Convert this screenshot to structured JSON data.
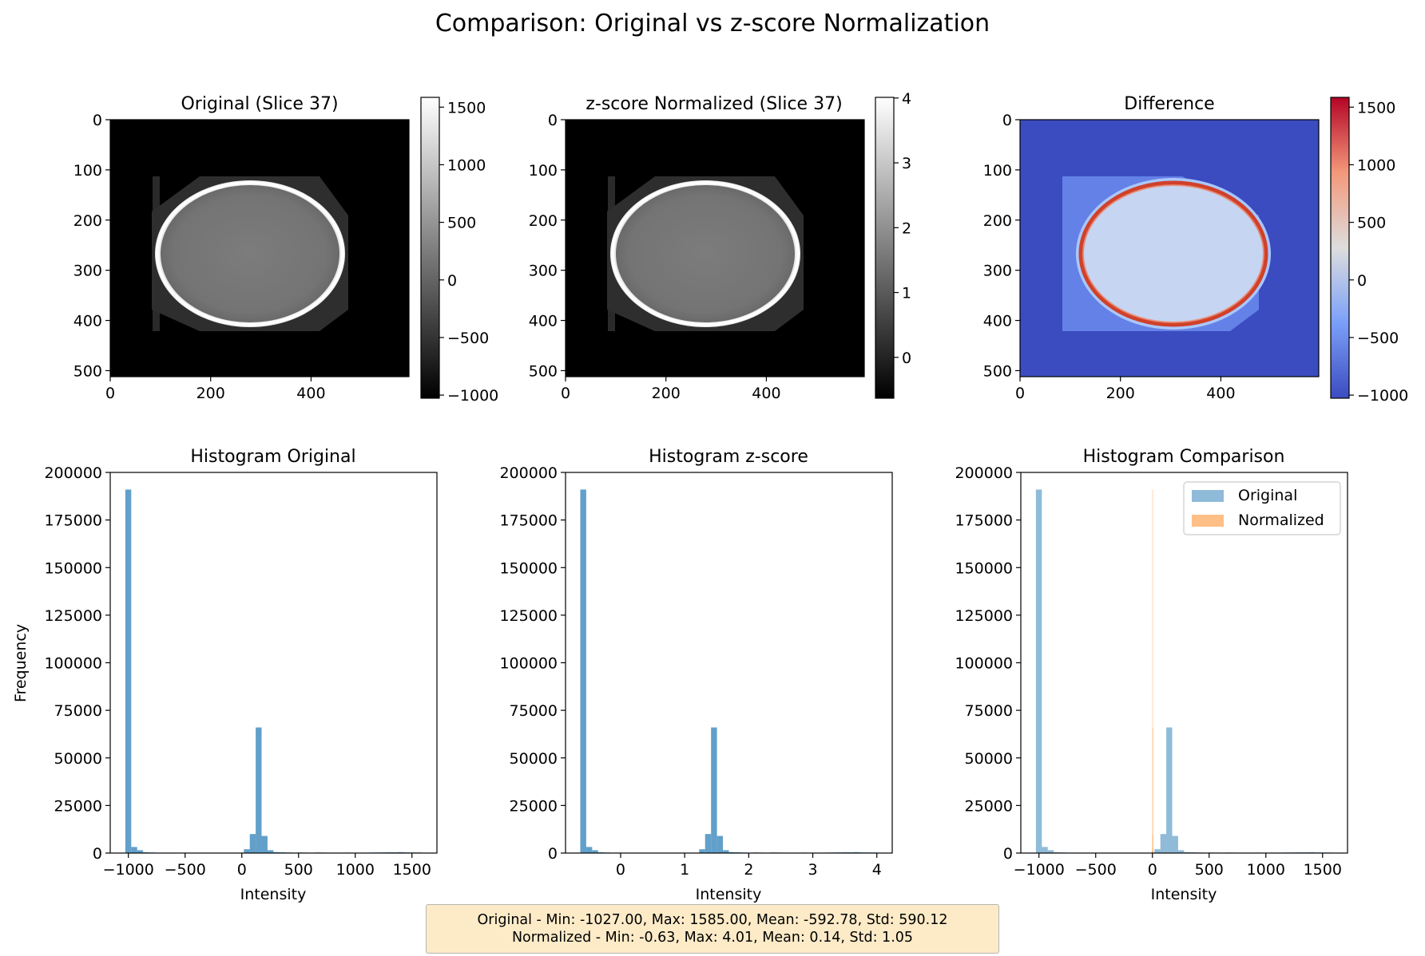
{
  "figure": {
    "title": "Comparison: Original vs z-score Normalization"
  },
  "colors": {
    "hist_blue": "#1f77b4",
    "hist_orange": "#ff7f0e",
    "diff_background": "#3b4cc0",
    "stats_box_bg": "#fdebc8"
  },
  "panels": {
    "original_image": {
      "title": "Original (Slice 37)",
      "colormap": "gray",
      "x_ticks": [
        "0",
        "200",
        "400"
      ],
      "y_ticks": [
        "0",
        "100",
        "200",
        "300",
        "400",
        "500"
      ],
      "colorbar_ticks": [
        "1500",
        "1000",
        "500",
        "0",
        "−500",
        "−1000"
      ]
    },
    "zscore_image": {
      "title": "z-score Normalized (Slice 37)",
      "colormap": "gray",
      "x_ticks": [
        "0",
        "200",
        "400"
      ],
      "y_ticks": [
        "0",
        "100",
        "200",
        "300",
        "400",
        "500"
      ],
      "colorbar_ticks": [
        "4",
        "3",
        "2",
        "1",
        "0"
      ]
    },
    "difference_image": {
      "title": "Difference",
      "colormap": "coolwarm",
      "x_ticks": [
        "0",
        "200",
        "400"
      ],
      "y_ticks": [
        "0",
        "100",
        "200",
        "300",
        "400",
        "500"
      ],
      "colorbar_ticks": [
        "1500",
        "1000",
        "500",
        "0",
        "−500",
        "−1000"
      ]
    },
    "hist_original": {
      "title": "Histogram Original",
      "xlabel": "Intensity",
      "ylabel": "Frequency",
      "x_ticks": [
        "−1000",
        "−500",
        "0",
        "500",
        "1000",
        "1500"
      ],
      "y_ticks": [
        "0",
        "25000",
        "50000",
        "75000",
        "100000",
        "125000",
        "150000",
        "175000",
        "200000"
      ]
    },
    "hist_zscore": {
      "title": "Histogram z-score",
      "xlabel": "Intensity",
      "x_ticks": [
        "0",
        "1",
        "2",
        "3",
        "4"
      ],
      "y_ticks": [
        "0",
        "25000",
        "50000",
        "75000",
        "100000",
        "125000",
        "150000",
        "175000",
        "200000"
      ]
    },
    "hist_comparison": {
      "title": "Histogram Comparison",
      "xlabel": "Intensity",
      "x_ticks": [
        "−1000",
        "−500",
        "0",
        "500",
        "1000",
        "1500"
      ],
      "y_ticks": [
        "0",
        "25000",
        "50000",
        "75000",
        "100000",
        "125000",
        "150000",
        "175000",
        "200000"
      ],
      "legend": [
        "Original",
        "Normalized"
      ],
      "legend_position": "top-right"
    }
  },
  "stats": {
    "line1": "Original - Min: -1027.00, Max: 1585.00, Mean: -592.78, Std: 590.12",
    "line2": "Normalized - Min: -0.63, Max: 4.01, Mean: 0.14, Std: 1.05"
  },
  "chart_data": [
    {
      "type": "heatmap",
      "title": "Original (Slice 37)",
      "xlim": [
        0,
        595
      ],
      "ylim": [
        512,
        0
      ],
      "clim": [
        -1027,
        1585
      ]
    },
    {
      "type": "heatmap",
      "title": "z-score Normalized (Slice 37)",
      "xlim": [
        0,
        595
      ],
      "ylim": [
        512,
        0
      ],
      "clim": [
        -0.63,
        4.01
      ]
    },
    {
      "type": "heatmap",
      "title": "Difference",
      "xlim": [
        0,
        595
      ],
      "ylim": [
        512,
        0
      ],
      "clim": [
        -1027,
        1585
      ]
    },
    {
      "type": "bar",
      "title": "Histogram Original",
      "xlabel": "Intensity",
      "ylabel": "Frequency",
      "xlim": [
        -1160,
        1720
      ],
      "ylim": [
        0,
        200000
      ],
      "bin_min": -1027,
      "bin_max": 1585,
      "values": [
        191000,
        3200,
        1500,
        400,
        300,
        200,
        150,
        100,
        0,
        0,
        0,
        0,
        0,
        0,
        0,
        0,
        0,
        0,
        0,
        0,
        2000,
        10000,
        66000,
        9000,
        1500,
        500,
        400,
        300,
        200,
        300,
        250,
        200,
        300,
        250,
        200,
        200,
        200,
        250,
        200,
        200,
        200,
        250,
        300,
        350,
        400,
        400,
        500,
        350,
        300,
        300
      ]
    },
    {
      "type": "bar",
      "title": "Histogram z-score",
      "xlabel": "Intensity",
      "xlim": [
        -0.86,
        4.24
      ],
      "ylim": [
        0,
        200000
      ],
      "bin_min": -0.63,
      "bin_max": 4.01,
      "values": [
        191000,
        3200,
        1500,
        400,
        300,
        200,
        150,
        100,
        0,
        0,
        0,
        0,
        0,
        0,
        0,
        0,
        0,
        0,
        0,
        0,
        2000,
        10000,
        66000,
        9000,
        1500,
        500,
        400,
        300,
        200,
        300,
        250,
        200,
        300,
        250,
        200,
        200,
        200,
        250,
        200,
        200,
        200,
        250,
        300,
        350,
        400,
        400,
        500,
        350,
        300,
        300
      ]
    },
    {
      "type": "bar",
      "title": "Histogram Comparison",
      "xlabel": "Intensity",
      "xlim": [
        -1160,
        1720
      ],
      "ylim": [
        0,
        200000
      ],
      "series": [
        {
          "name": "Original",
          "bin_min": -1027,
          "bin_max": 1585,
          "values": [
            191000,
            3200,
            1500,
            400,
            300,
            200,
            150,
            100,
            0,
            0,
            0,
            0,
            0,
            0,
            0,
            0,
            0,
            0,
            0,
            0,
            2000,
            10000,
            66000,
            9000,
            1500,
            500,
            400,
            300,
            200,
            300,
            250,
            200,
            300,
            250,
            200,
            200,
            200,
            250,
            200,
            200,
            200,
            250,
            300,
            350,
            400,
            400,
            500,
            350,
            300,
            300
          ]
        },
        {
          "name": "Normalized",
          "bin_min": -0.63,
          "bin_max": 4.01,
          "values": [
            191000,
            3200,
            1500,
            400,
            300,
            200,
            150,
            100,
            0,
            0,
            0,
            0,
            0,
            0,
            0,
            0,
            0,
            0,
            0,
            0,
            2000,
            10000,
            66000,
            9000,
            1500,
            500,
            400,
            300,
            200,
            300,
            250,
            200,
            300,
            250,
            200,
            200,
            200,
            250,
            200,
            200,
            200,
            250,
            300,
            350,
            400,
            400,
            500,
            350,
            300,
            300
          ]
        }
      ]
    }
  ]
}
